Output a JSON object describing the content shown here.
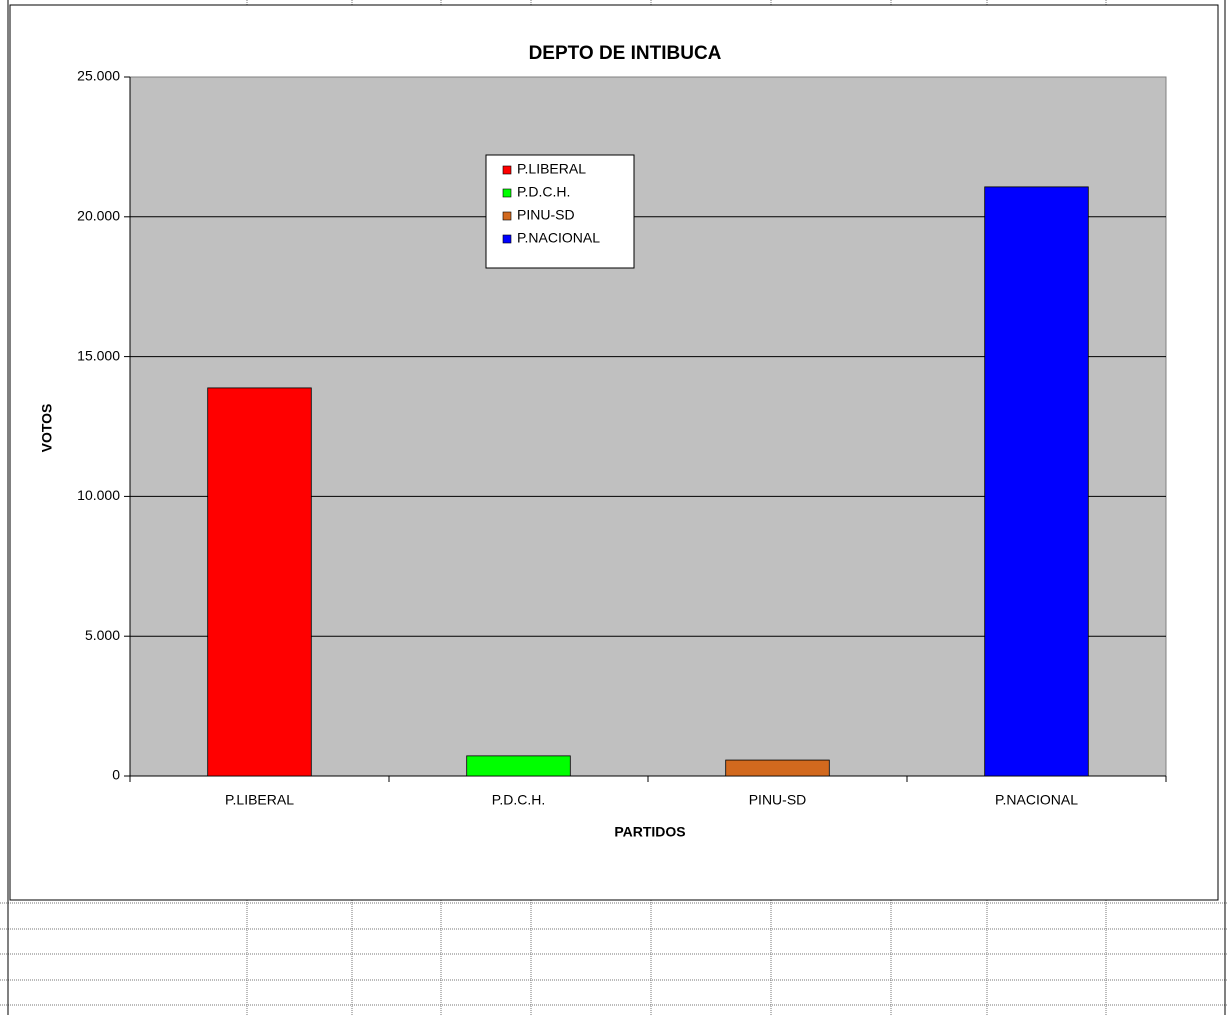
{
  "chart_data": {
    "type": "bar",
    "title": "DEPTO DE INTIBUCA",
    "x_label": "PARTIDOS",
    "y_label": "VOTOS",
    "categories": [
      "P.LIBERAL",
      "P.D.C.H.",
      "PINU-SD",
      "P.NACIONAL"
    ],
    "values": [
      13880,
      720,
      570,
      21070
    ],
    "colors": [
      "#ff0000",
      "#00ff00",
      "#d2691e",
      "#0000ff"
    ],
    "ylim": [
      0,
      25000
    ],
    "yticks": [
      0,
      {
        "value": 5000,
        "label": "5.000"
      },
      {
        "value": 10000,
        "label": "10.000"
      },
      {
        "value": 15000,
        "label": "15.000"
      },
      {
        "value": 20000,
        "label": "20.000"
      },
      {
        "value": 25000,
        "label": "25.000"
      }
    ],
    "grid": true,
    "legend": true
  }
}
